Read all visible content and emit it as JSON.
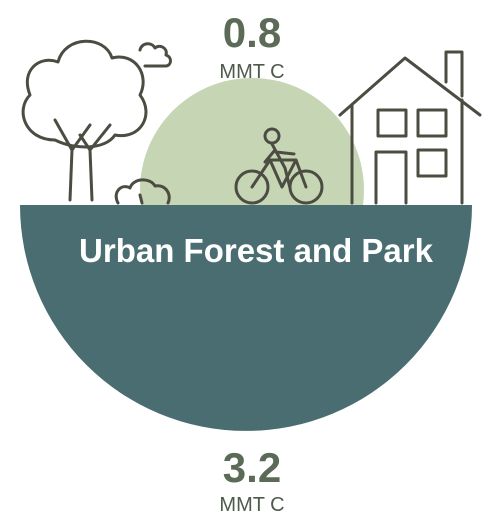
{
  "top": {
    "value": 0.8,
    "unit": "MMT C"
  },
  "title": "Urban Forest and Park",
  "bottom": {
    "value": 3.2,
    "unit": "MMT C"
  }
}
